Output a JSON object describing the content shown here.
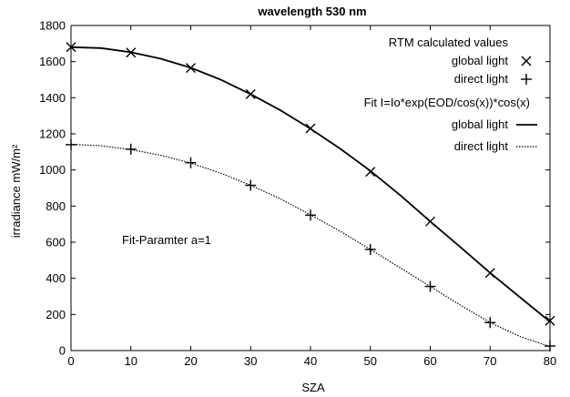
{
  "chart_data": {
    "type": "line",
    "title": "wavelength 530 nm",
    "xlabel": "SZA",
    "ylabel": "irradiance mW/m²",
    "xlim": [
      0,
      80
    ],
    "ylim": [
      0,
      1800
    ],
    "xticks": [
      0,
      10,
      20,
      30,
      40,
      50,
      60,
      70,
      80
    ],
    "yticks": [
      0,
      200,
      400,
      600,
      800,
      1000,
      1200,
      1400,
      1600,
      1800
    ],
    "grid": false,
    "legend_position": "top-right",
    "annotation": "Fit-Paramter a=1",
    "legend": {
      "points_header": "RTM calculated values",
      "fit_header": "Fit I=Io*exp(EOD/cos(x))*cos(x)"
    },
    "series": [
      {
        "name": "global light",
        "group": "points",
        "marker": "x",
        "x": [
          0,
          10,
          20,
          30,
          40,
          50,
          60,
          70,
          80
        ],
        "y": [
          1680,
          1650,
          1565,
          1420,
          1230,
          990,
          715,
          430,
          165
        ]
      },
      {
        "name": "direct light",
        "group": "points",
        "marker": "+",
        "x": [
          0,
          10,
          20,
          30,
          40,
          50,
          60,
          70,
          80
        ],
        "y": [
          1140,
          1115,
          1040,
          915,
          750,
          560,
          355,
          155,
          25
        ]
      },
      {
        "name": "global light",
        "group": "fit",
        "line": "solid",
        "x": [
          0,
          5,
          10,
          15,
          20,
          25,
          30,
          35,
          40,
          45,
          50,
          55,
          60,
          65,
          70,
          75,
          80
        ],
        "y": [
          1680,
          1675,
          1652,
          1616,
          1566,
          1500,
          1420,
          1330,
          1228,
          1117,
          995,
          860,
          715,
          574,
          430,
          295,
          160
        ]
      },
      {
        "name": "direct light",
        "group": "fit",
        "line": "dotted",
        "x": [
          0,
          5,
          10,
          15,
          20,
          25,
          30,
          35,
          40,
          45,
          50,
          55,
          60,
          65,
          70,
          75,
          80
        ],
        "y": [
          1142,
          1134,
          1113,
          1081,
          1038,
          982,
          915,
          840,
          752,
          660,
          560,
          458,
          355,
          252,
          155,
          78,
          22
        ]
      }
    ]
  }
}
